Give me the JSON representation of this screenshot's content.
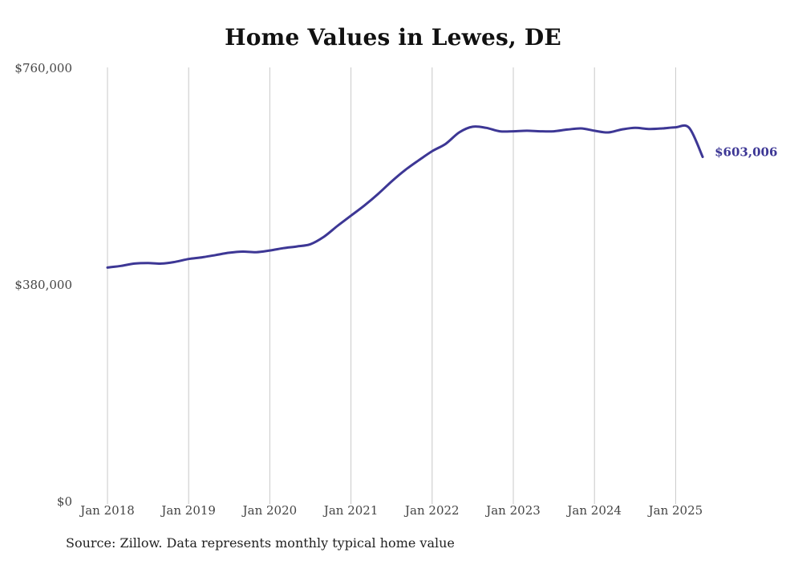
{
  "title": "Home Values in Lewes, DE",
  "source_note": "Source: Zillow. Data represents monthly typical home value",
  "colors": {
    "line": "#3d3795",
    "grid": "#c8c8c8",
    "text": "#444444"
  },
  "chart_data": {
    "type": "line",
    "title": "Home Values in Lewes, DE",
    "xlabel": "",
    "ylabel": "",
    "y_ticks": [
      {
        "value": 0,
        "label": "$0"
      },
      {
        "value": 380000,
        "label": "$380,000"
      },
      {
        "value": 760000,
        "label": "$760,000"
      }
    ],
    "ylim": [
      0,
      760000
    ],
    "x_ticks": [
      "Jan 2018",
      "Jan 2019",
      "Jan 2020",
      "Jan 2021",
      "Jan 2022",
      "Jan 2023",
      "Jan 2024",
      "Jan 2025"
    ],
    "grid": "vertical at January of each year",
    "end_label": "$603,006",
    "series": [
      {
        "x": [
          "2018-01",
          "2018-03",
          "2018-05",
          "2018-07",
          "2018-09",
          "2018-11",
          "2019-01",
          "2019-03",
          "2019-05",
          "2019-07",
          "2019-09",
          "2019-11",
          "2020-01",
          "2020-03",
          "2020-05",
          "2020-07",
          "2020-09",
          "2020-11",
          "2021-01",
          "2021-03",
          "2021-05",
          "2021-07",
          "2021-09",
          "2021-11",
          "2022-01",
          "2022-03",
          "2022-05",
          "2022-07",
          "2022-09",
          "2022-11",
          "2023-01",
          "2023-03",
          "2023-05",
          "2023-07",
          "2023-09",
          "2023-11",
          "2024-01",
          "2024-03",
          "2024-05",
          "2024-07",
          "2024-09",
          "2024-11",
          "2025-01",
          "2025-03",
          "2025-05"
        ],
        "values": [
          409000,
          412000,
          416000,
          417000,
          416000,
          419000,
          424000,
          427000,
          431000,
          435000,
          437000,
          436000,
          439000,
          443000,
          446000,
          450000,
          463000,
          482000,
          500000,
          518000,
          538000,
          560000,
          580000,
          597000,
          613000,
          626000,
          646000,
          656000,
          654000,
          648000,
          648000,
          649000,
          648000,
          648000,
          651000,
          653000,
          649000,
          646000,
          651000,
          654000,
          652000,
          653000,
          655000,
          654000,
          603006
        ]
      }
    ]
  }
}
